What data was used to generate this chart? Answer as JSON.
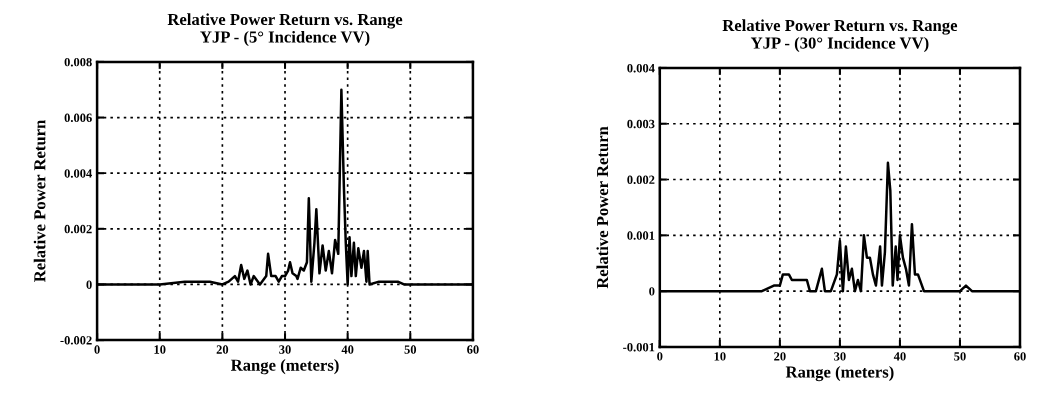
{
  "chart_data": [
    {
      "type": "line",
      "title": "Relative Power Return vs. Range\nYJP - (5° Incidence VV)",
      "xlabel": "Range (meters)",
      "ylabel": "Relative Power Return",
      "xlim": [
        0,
        60
      ],
      "xticks": [
        0,
        10,
        20,
        30,
        40,
        50,
        60
      ],
      "ylim": [
        -0.002,
        0.008
      ],
      "yticks": [
        -0.002,
        0,
        0.002,
        0.004,
        0.006,
        0.008
      ],
      "grid": true,
      "line_style": "solid",
      "marker": "none",
      "series": [
        {
          "color": "#000000",
          "x": [
            0,
            5,
            10,
            14,
            18,
            20,
            21,
            22,
            22.5,
            23,
            23.5,
            24,
            24.5,
            25,
            26,
            27,
            27.3,
            27.8,
            28.5,
            29,
            29.5,
            30,
            30.5,
            30.8,
            31.2,
            31.8,
            32,
            32.5,
            33,
            33.5,
            33.8,
            34.2,
            34.7,
            35,
            35.5,
            36,
            36.5,
            37,
            37.5,
            38,
            38.5,
            39,
            39.4,
            39.7,
            40,
            40.3,
            40.6,
            41,
            41.3,
            41.7,
            42.2,
            42.6,
            43,
            43.2,
            43.5,
            45,
            46,
            48,
            49,
            50,
            55,
            60
          ],
          "values": [
            0,
            0,
            0,
            0.0001,
            0.0001,
            0,
            0.0001,
            0.0003,
            0.0001,
            0.0007,
            0.0002,
            0.0005,
            0,
            0.0003,
            0,
            0.0003,
            0.0011,
            0.0003,
            0.0003,
            0.0001,
            0.0003,
            0.0003,
            0.0005,
            0.0008,
            0.0004,
            0.0003,
            0.0002,
            0.0006,
            0.0005,
            0.0008,
            0.0031,
            0.0001,
            0.0015,
            0.0027,
            0.0004,
            0.0014,
            0.0005,
            0.0012,
            0.0004,
            0.0016,
            0.0011,
            0.007,
            0.0035,
            0.0015,
            0,
            0.0017,
            0.0003,
            0.0015,
            0.0003,
            0.0013,
            0.0006,
            0.0012,
            0.0001,
            0.0012,
            0,
            0.0001,
            0.0001,
            0.0001,
            0,
            0,
            0,
            0
          ]
        }
      ]
    },
    {
      "type": "line",
      "title": "Relative Power Return vs. Range\nYJP - (30° Incidence VV)",
      "xlabel": "Range (meters)",
      "ylabel": "Relative Power Return",
      "xlim": [
        0,
        60
      ],
      "xticks": [
        0,
        10,
        20,
        30,
        40,
        50,
        60
      ],
      "ylim": [
        -0.001,
        0.004
      ],
      "yticks": [
        -0.001,
        0,
        0.001,
        0.002,
        0.003,
        0.004
      ],
      "grid": true,
      "line_style": "solid",
      "marker": "none",
      "series": [
        {
          "color": "#000000",
          "x": [
            0,
            5,
            10,
            15,
            17,
            19,
            20,
            20.5,
            21.5,
            22,
            23,
            23.5,
            24,
            24.5,
            25,
            26,
            27,
            27.5,
            28.5,
            29.5,
            30,
            30.5,
            31,
            31.5,
            32,
            32.5,
            33,
            33.5,
            34,
            34.5,
            35,
            35.5,
            36,
            36.7,
            37,
            37.5,
            38,
            38.4,
            38.8,
            39.3,
            39.6,
            40,
            40.5,
            41,
            41.5,
            42,
            42.5,
            43,
            44,
            47,
            50,
            51,
            52,
            53,
            56,
            60
          ],
          "values": [
            0,
            0,
            0,
            0,
            0,
            0.0001,
            0.0001,
            0.0003,
            0.0003,
            0.0002,
            0.0002,
            0.0002,
            0.0002,
            0.0002,
            0,
            0,
            0.0004,
            0,
            0,
            0.0003,
            0.0009,
            0,
            0.0008,
            0.0002,
            0.0004,
            0,
            0.0002,
            0,
            0.001,
            0.0006,
            0.0006,
            0.0003,
            0.0001,
            0.0008,
            0.0001,
            0.0007,
            0.0023,
            0.0018,
            0.0001,
            0.0008,
            0.0002,
            0.001,
            0.0006,
            0.0004,
            0.0001,
            0.0012,
            0.0003,
            0.0003,
            0,
            0,
            0,
            0.0001,
            0,
            0,
            0,
            0
          ]
        }
      ]
    }
  ]
}
